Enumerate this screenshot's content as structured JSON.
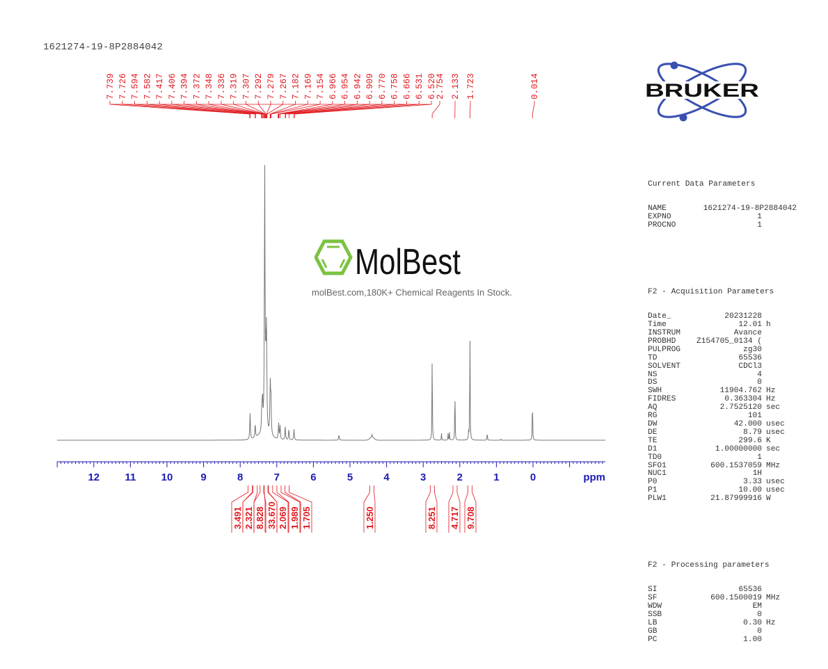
{
  "header": {
    "sample_id": "1621274-19-8P2884042"
  },
  "watermark": {
    "brand": "MolBest",
    "tagline": "molBest.com,180K+ Chemical Reagents In Stock."
  },
  "logo": {
    "name": "BRUKER"
  },
  "colors": {
    "spectrum": "#777777",
    "peak_labels": "#e0191f",
    "axis": "#1b1bb5",
    "molbest_green": "#7dc243",
    "bruker_blue": "#3a50b0"
  },
  "parameters": {
    "current": {
      "title": "Current Data Parameters",
      "rows": [
        {
          "k": "NAME",
          "v": "1621274-19-8P2884042",
          "u": ""
        },
        {
          "k": "EXPNO",
          "v": "1",
          "u": ""
        },
        {
          "k": "PROCNO",
          "v": "1",
          "u": ""
        }
      ]
    },
    "acquisition": {
      "title": "F2 - Acquisition Parameters",
      "rows": [
        {
          "k": "Date_",
          "v": "20231228",
          "u": ""
        },
        {
          "k": "Time",
          "v": "12.01",
          "u": "h"
        },
        {
          "k": "INSTRUM",
          "v": "Avance",
          "u": ""
        },
        {
          "k": "PROBHD",
          "v": "Z154705_0134 (",
          "u": ""
        },
        {
          "k": "PULPROG",
          "v": "zg30",
          "u": ""
        },
        {
          "k": "TD",
          "v": "65536",
          "u": ""
        },
        {
          "k": "SOLVENT",
          "v": "CDCl3",
          "u": ""
        },
        {
          "k": "NS",
          "v": "4",
          "u": ""
        },
        {
          "k": "DS",
          "v": "0",
          "u": ""
        },
        {
          "k": "SWH",
          "v": "11904.762",
          "u": "Hz"
        },
        {
          "k": "FIDRES",
          "v": "0.363304",
          "u": "Hz"
        },
        {
          "k": "AQ",
          "v": "2.7525120",
          "u": "sec"
        },
        {
          "k": "RG",
          "v": "101",
          "u": ""
        },
        {
          "k": "DW",
          "v": "42.000",
          "u": "usec"
        },
        {
          "k": "DE",
          "v": "8.79",
          "u": "usec"
        },
        {
          "k": "TE",
          "v": "299.6",
          "u": "K"
        },
        {
          "k": "D1",
          "v": "1.00000000",
          "u": "sec"
        },
        {
          "k": "TD0",
          "v": "1",
          "u": ""
        },
        {
          "k": "SFO1",
          "v": "600.1537059",
          "u": "MHz"
        },
        {
          "k": "NUC1",
          "v": "1H",
          "u": ""
        },
        {
          "k": "P0",
          "v": "3.33",
          "u": "usec"
        },
        {
          "k": "P1",
          "v": "10.00",
          "u": "usec"
        },
        {
          "k": "PLW1",
          "v": "21.87999916",
          "u": "W"
        }
      ]
    },
    "processing": {
      "title": "F2 - Processing parameters",
      "rows": [
        {
          "k": "SI",
          "v": "65536",
          "u": ""
        },
        {
          "k": "SF",
          "v": "600.1500019",
          "u": "MHz"
        },
        {
          "k": "WDW",
          "v": "EM",
          "u": ""
        },
        {
          "k": "SSB",
          "v": "0",
          "u": ""
        },
        {
          "k": "LB",
          "v": "0.30",
          "u": "Hz"
        },
        {
          "k": "GB",
          "v": "0",
          "u": ""
        },
        {
          "k": "PC",
          "v": "1.00",
          "u": ""
        }
      ]
    }
  },
  "chart_data": {
    "type": "line",
    "title": "1621274-19-8P2884042",
    "xlabel": "ppm",
    "ylabel": "",
    "xlim": [
      13.0,
      -2.0
    ],
    "x_reversed": true,
    "grid": false,
    "x_ticks": [
      "12",
      "11",
      "10",
      "9",
      "8",
      "7",
      "6",
      "5",
      "4",
      "3",
      "2",
      "1",
      "0"
    ],
    "peak_labels": [
      "7.739",
      "7.726",
      "7.594",
      "7.582",
      "7.417",
      "7.406",
      "7.394",
      "7.372",
      "7.348",
      "7.336",
      "7.319",
      "7.307",
      "7.292",
      "7.279",
      "7.267",
      "7.182",
      "7.169",
      "7.154",
      "6.966",
      "6.954",
      "6.942",
      "6.909",
      "6.770",
      "6.758",
      "6.666",
      "6.531",
      "6.520",
      "2.754",
      "2.133",
      "1.723",
      "0.014"
    ],
    "peaks": [
      {
        "ppm": 7.73,
        "height": 0.1
      },
      {
        "ppm": 7.59,
        "height": 0.05
      },
      {
        "ppm": 7.41,
        "height": 0.08
      },
      {
        "ppm": 7.39,
        "height": 0.12
      },
      {
        "ppm": 7.33,
        "height": 1.0
      },
      {
        "ppm": 7.3,
        "height": 0.22
      },
      {
        "ppm": 7.28,
        "height": 0.35
      },
      {
        "ppm": 7.18,
        "height": 0.19
      },
      {
        "ppm": 7.16,
        "height": 0.14
      },
      {
        "ppm": 6.95,
        "height": 0.06
      },
      {
        "ppm": 6.91,
        "height": 0.05
      },
      {
        "ppm": 6.77,
        "height": 0.05
      },
      {
        "ppm": 6.67,
        "height": 0.04
      },
      {
        "ppm": 6.53,
        "height": 0.04
      },
      {
        "ppm": 5.3,
        "height": 0.02
      },
      {
        "ppm": 4.4,
        "height": 0.01
      },
      {
        "ppm": 2.754,
        "height": 0.34
      },
      {
        "ppm": 2.5,
        "height": 0.025
      },
      {
        "ppm": 2.32,
        "height": 0.025
      },
      {
        "ppm": 2.28,
        "height": 0.03
      },
      {
        "ppm": 2.133,
        "height": 0.2
      },
      {
        "ppm": 1.76,
        "height": 0.03
      },
      {
        "ppm": 1.723,
        "height": 0.43
      },
      {
        "ppm": 1.25,
        "height": 0.03
      },
      {
        "ppm": 0.88,
        "height": 0.005
      },
      {
        "ppm": 0.014,
        "height": 0.16
      }
    ],
    "integrals": [
      {
        "ppm": 7.73,
        "value": "3.491"
      },
      {
        "ppm": 7.59,
        "value": "2.321"
      },
      {
        "ppm": 7.4,
        "value": "8.828"
      },
      {
        "ppm": 7.3,
        "value": "33.670"
      },
      {
        "ppm": 7.17,
        "value": "2.069"
      },
      {
        "ppm": 6.94,
        "value": "1.989"
      },
      {
        "ppm": 6.72,
        "value": "1.705"
      },
      {
        "ppm": 4.4,
        "value": "1.250"
      },
      {
        "ppm": 2.75,
        "value": "8.251"
      },
      {
        "ppm": 2.13,
        "value": "4.717"
      },
      {
        "ppm": 1.72,
        "value": "9.708"
      }
    ]
  }
}
